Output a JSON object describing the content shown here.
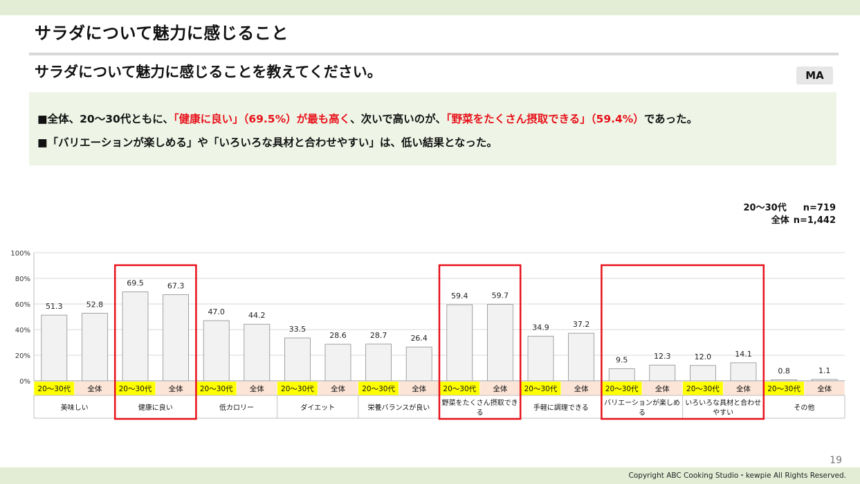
{
  "slide": {
    "title": "サラダについて魅力に感じること",
    "question": "サラダについて魅力に感じることを教えてください。",
    "badge": "MA",
    "summary_line1": [
      {
        "text": "■全体、20～30代ともに、",
        "red": false
      },
      {
        "text": "「健康に良い」（69.5%）が最も高く",
        "red": true
      },
      {
        "text": "、次いで高いのが、",
        "red": false
      },
      {
        "text": "「野菜をたくさん摂取できる」（59.4%）",
        "red": true
      },
      {
        "text": "であった。",
        "red": false
      }
    ],
    "summary_line2": "■「バリエーションが楽しめる」や「いろいろな具材と合わせやすい」は、低い結果となった。",
    "sample_label_1": "20～30代",
    "sample_n_1": "n=719",
    "sample_label_2": "全体",
    "sample_n_2": "n=1,442",
    "page_number": "19",
    "copyright": "Copyright ABC Cooking Studio・kewpie All Rights Reserved."
  },
  "chart_data": {
    "type": "bar",
    "ylim": [
      0,
      100
    ],
    "yticks": [
      "0%",
      "20%",
      "40%",
      "60%",
      "80%",
      "100%"
    ],
    "series_labels": [
      "20～30代",
      "全体"
    ],
    "categories": [
      "美味しい",
      "健康に良い",
      "低カロリー",
      "ダイエット",
      "栄養バランスが良い",
      "野菜をたくさん摂取できる",
      "手軽に調理できる",
      "バリエーションが楽しめる",
      "いろいろな具材と合わせやすい",
      "その他"
    ],
    "series": [
      {
        "values": [
          51.3,
          69.5,
          47.0,
          33.5,
          28.7,
          59.4,
          34.9,
          9.5,
          12.0,
          0.8
        ]
      },
      {
        "values": [
          52.8,
          67.3,
          44.2,
          28.6,
          26.4,
          59.7,
          37.2,
          12.3,
          14.1,
          1.1
        ]
      }
    ],
    "highlight_color": "#e8101a",
    "bar_fill": "#f2f2f2",
    "label_yellow": "#ffff00",
    "label_peach": "#fce4d6"
  }
}
